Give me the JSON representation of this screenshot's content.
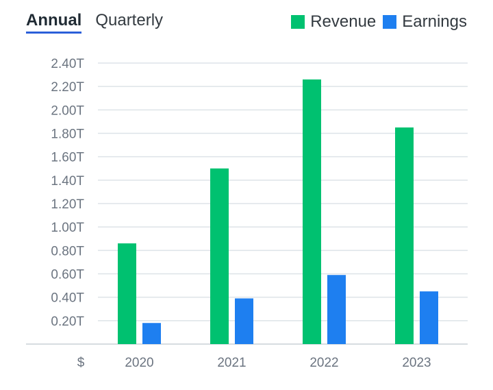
{
  "tabs": [
    {
      "label": "Annual",
      "active": true
    },
    {
      "label": "Quarterly",
      "active": false
    }
  ],
  "legend": [
    {
      "name": "Revenue",
      "color": "#00c170"
    },
    {
      "name": "Earnings",
      "color": "#1e7ff0"
    }
  ],
  "chart_data": {
    "type": "bar",
    "title": "",
    "categories": [
      "2020",
      "2021",
      "2022",
      "2023"
    ],
    "series": [
      {
        "name": "Revenue",
        "color": "#00c170",
        "values": [
          0.86,
          1.5,
          2.26,
          1.85
        ]
      },
      {
        "name": "Earnings",
        "color": "#1e7ff0",
        "values": [
          0.18,
          0.39,
          0.59,
          0.45
        ]
      }
    ],
    "yticks": [
      0.2,
      0.4,
      0.6,
      0.8,
      1.0,
      1.2,
      1.4,
      1.6,
      1.8,
      2.0,
      2.2,
      2.4
    ],
    "ytick_labels": [
      "0.20T",
      "0.40T",
      "0.60T",
      "0.80T",
      "1.00T",
      "1.20T",
      "1.40T",
      "1.60T",
      "1.80T",
      "2.00T",
      "2.20T",
      "2.40T"
    ],
    "ylim": [
      0,
      2.4
    ],
    "ylabel": "$",
    "xlabel": "",
    "grid": true,
    "legend_position": "top-right"
  }
}
